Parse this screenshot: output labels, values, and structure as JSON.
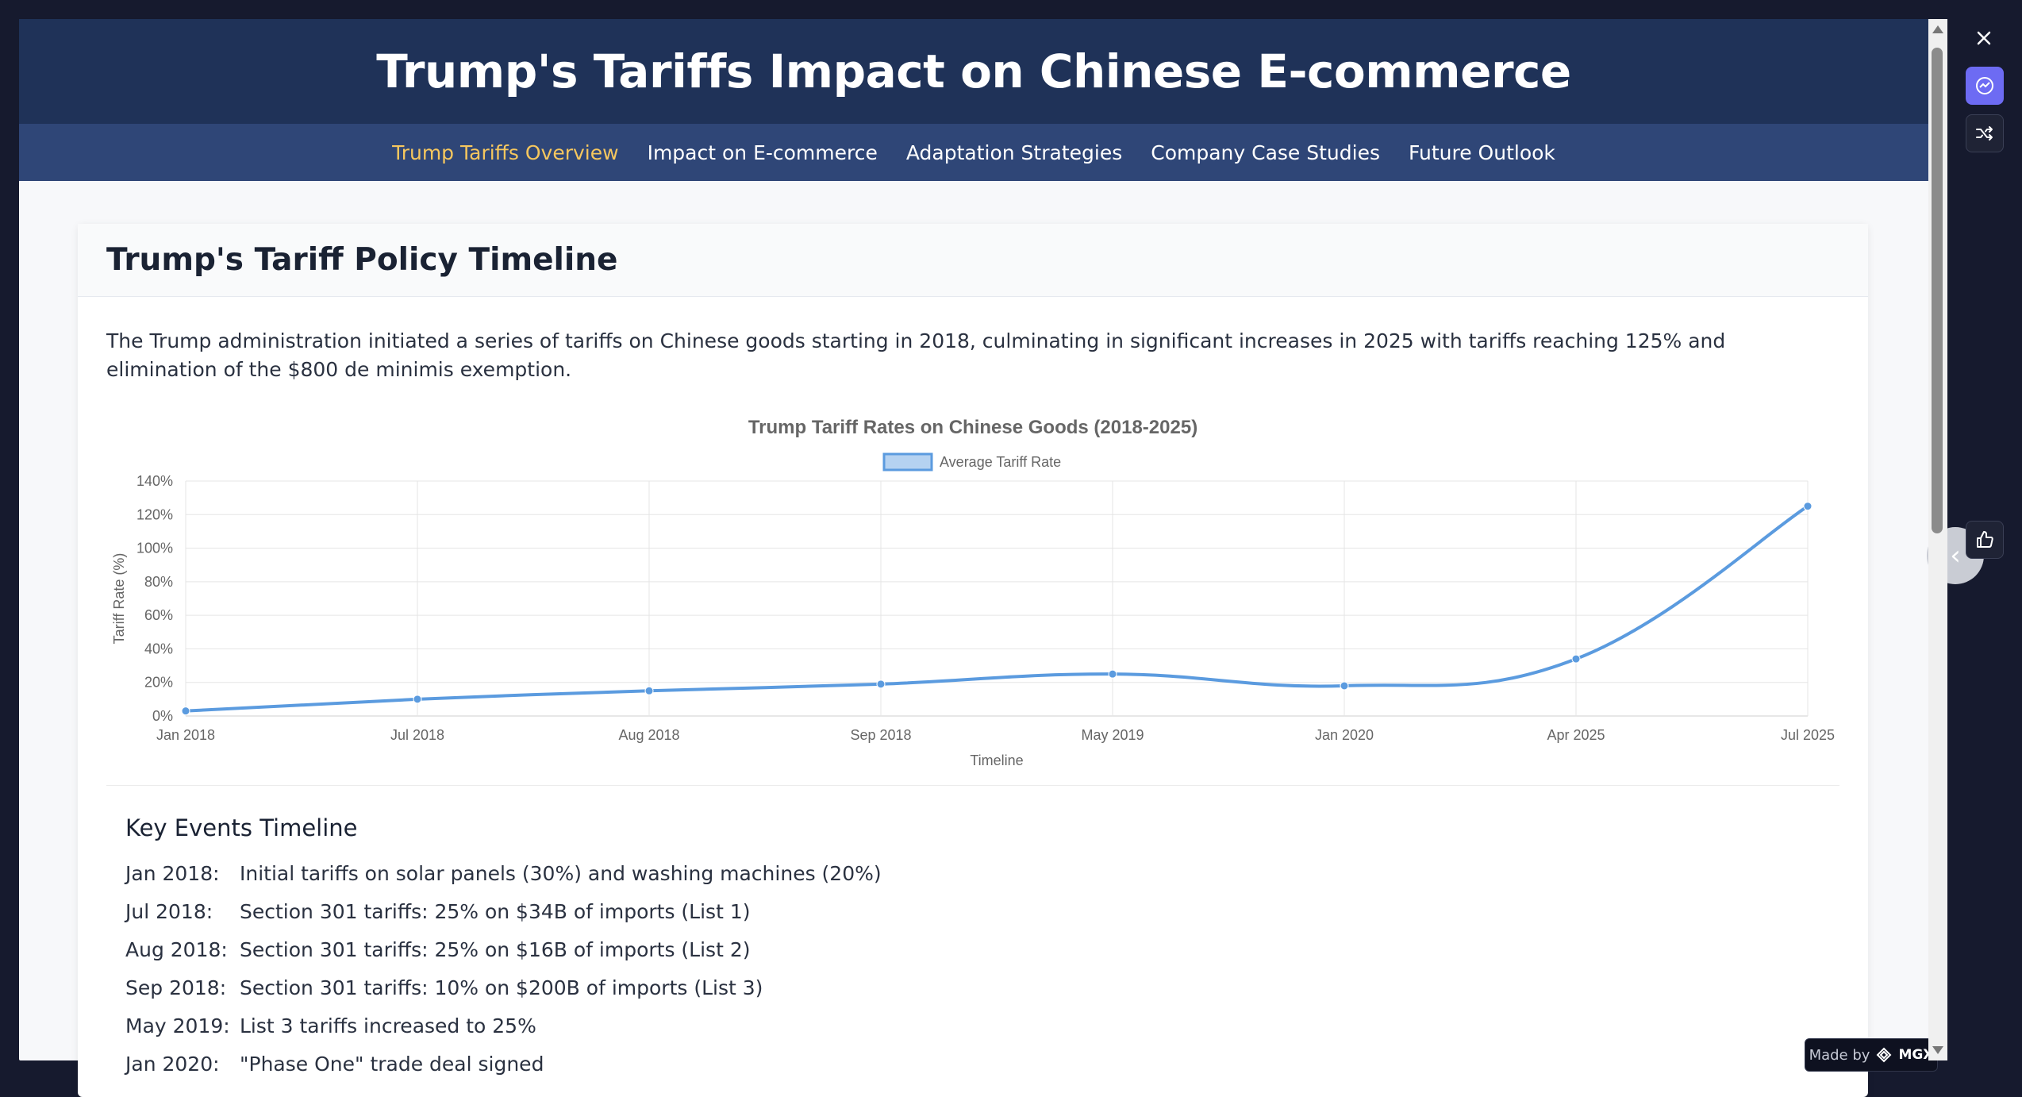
{
  "header": {
    "title": "Trump's Tariffs Impact on Chinese E-commerce"
  },
  "nav": {
    "items": [
      {
        "label": "Trump Tariffs Overview",
        "active": true
      },
      {
        "label": "Impact on E-commerce",
        "active": false
      },
      {
        "label": "Adaptation Strategies",
        "active": false
      },
      {
        "label": "Company Case Studies",
        "active": false
      },
      {
        "label": "Future Outlook",
        "active": false
      }
    ],
    "active_color": "#f6c75e"
  },
  "section": {
    "title": "Trump's Tariff Policy Timeline",
    "intro": "The Trump administration initiated a series of tariffs on Chinese goods starting in 2018, culminating in significant increases in 2025 with tariffs reaching 125% and elimination of the $800 de minimis exemption."
  },
  "chart_data": {
    "type": "line",
    "title": "Trump Tariff Rates on Chinese Goods (2018-2025)",
    "xlabel": "Timeline",
    "ylabel": "Tariff Rate (%)",
    "categories": [
      "Jan 2018",
      "Jul 2018",
      "Aug 2018",
      "Sep 2018",
      "May 2019",
      "Jan 2020",
      "Apr 2025",
      "Jul 2025"
    ],
    "series": [
      {
        "name": "Average Tariff Rate",
        "values": [
          3,
          10,
          15,
          19,
          25,
          18,
          34,
          125
        ],
        "color": "#5b9bdf"
      }
    ],
    "ylim": [
      0,
      140
    ],
    "yticks": [
      0,
      20,
      40,
      60,
      80,
      100,
      120,
      140
    ],
    "ytick_suffix": "%",
    "grid": true,
    "legend_position": "top"
  },
  "events": {
    "title": "Key Events Timeline",
    "items": [
      {
        "date": "Jan 2018:",
        "text": "Initial tariffs on solar panels (30%) and washing machines (20%)"
      },
      {
        "date": "Jul 2018:",
        "text": "Section 301 tariffs: 25% on $34B of imports (List 1)"
      },
      {
        "date": "Aug 2018:",
        "text": "Section 301 tariffs: 25% on $16B of imports (List 2)"
      },
      {
        "date": "Sep 2018:",
        "text": "Section 301 tariffs: 10% on $200B of imports (List 3)"
      },
      {
        "date": "May 2019:",
        "text": "List 3 tariffs increased to 25%"
      },
      {
        "date": "Jan 2020:",
        "text": "\"Phase One\" trade deal signed"
      }
    ]
  },
  "toolbar": {
    "close_icon": "close-icon",
    "chat_icon": "chat-icon",
    "shuffle_icon": "shuffle-icon",
    "like_icon": "thumbs-up-icon",
    "collapse_icon": "chevron-left-icon"
  },
  "badge": {
    "prefix": "Made by",
    "brand": "MGX"
  }
}
